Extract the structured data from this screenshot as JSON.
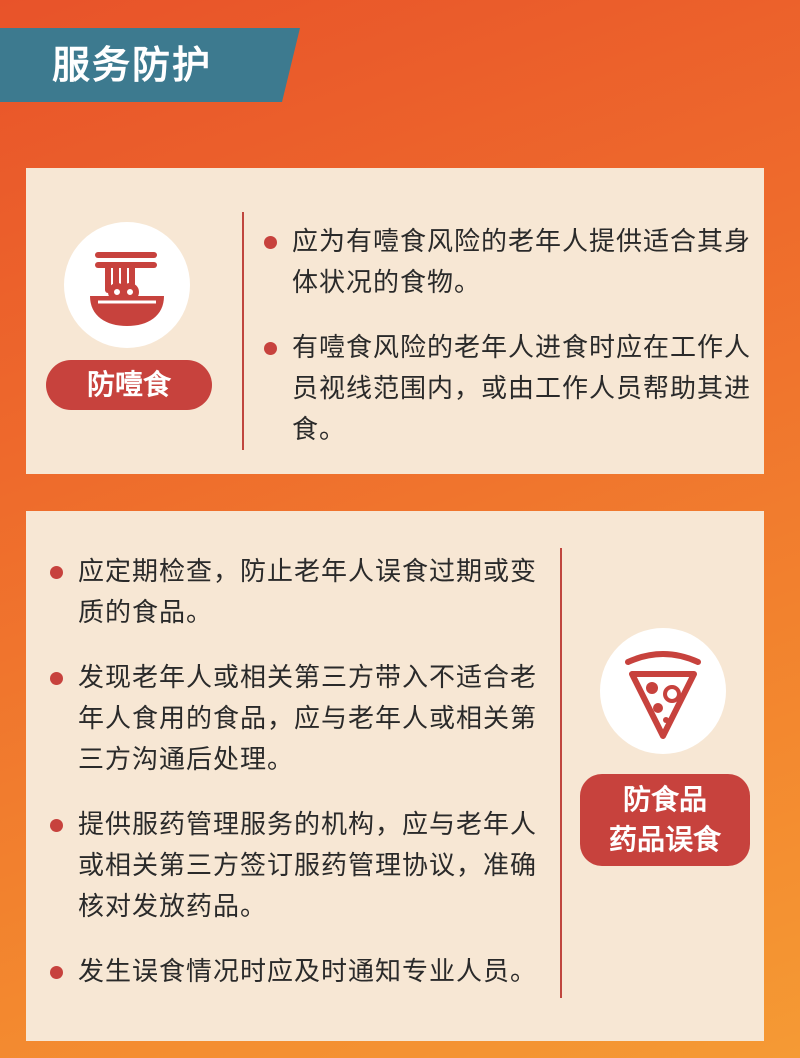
{
  "header": {
    "title": "服务防护"
  },
  "sections": [
    {
      "label": "防噎食",
      "icon": "noodle-bowl-icon",
      "bullets": [
        "应为有噎食风险的老年人提供适合其身体状况的食物。",
        "有噎食风险的老年人进食时应在工作人员视线范围内，或由工作人员帮助其进食。"
      ]
    },
    {
      "label_line1": "防食品",
      "label_line2": "药品误食",
      "icon": "pizza-slice-icon",
      "bullets": [
        "应定期检查，防止老年人误食过期或变质的食品。",
        "发现老年人或相关第三方带入不适合老年人食用的食品，应与老年人或相关第三方沟通后处理。",
        "提供服药管理服务的机构，应与老年人或相关第三方签订服药管理协议，准确核对发放药品。",
        "发生误食情况时应及时通知专业人员。"
      ]
    }
  ],
  "colors": {
    "accent": "#c7423d",
    "banner": "#3d7a8f",
    "card": "#f7e7d4"
  }
}
